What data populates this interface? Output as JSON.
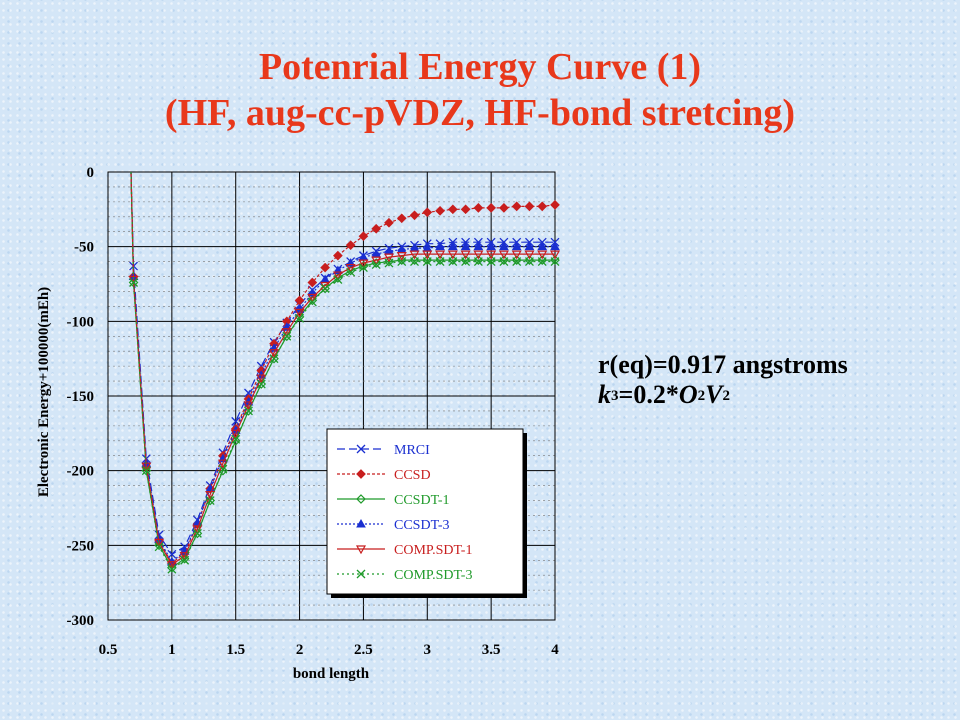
{
  "title_line1": "Potenrial Energy Curve (1)",
  "title_line2": "(HF, aug-cc-pVDZ, HF-bond stretcing)",
  "notes": {
    "req": "r(eq)=0.917 angstroms",
    "k_label": "k",
    "k_sup": "3",
    "k_eq": "=0.2*",
    "o_label": "O",
    "o_sup": "2",
    "v_label": "V",
    "v_sup": "2"
  },
  "colors": {
    "title": "#e8381b",
    "mrci": "#1a2fd0",
    "ccsd": "#c81e1e",
    "ccsdt1": "#1f9a2a",
    "ccsdt3": "#1a2fd0",
    "compsdt1": "#c81e1e",
    "compsdt3": "#1f9a2a"
  },
  "chart_data": {
    "type": "line",
    "title": "",
    "xlabel": "bond length",
    "ylabel": "Electronic Energy+100000(mEh)",
    "xlim": [
      0.5,
      4
    ],
    "ylim": [
      -300,
      0
    ],
    "xticks": [
      0.5,
      1,
      1.5,
      2,
      2.5,
      3,
      3.5,
      4
    ],
    "xtick_labels": [
      "0.5",
      "1",
      "1.5",
      "2",
      "2.5",
      "3",
      "3.5",
      "4"
    ],
    "yticks": [
      0,
      -50,
      -100,
      -150,
      -200,
      -250,
      -300
    ],
    "ytick_labels": [
      "0",
      "-50",
      "-100",
      "-150",
      "-200",
      "-250",
      "-300"
    ],
    "grid": true,
    "legend_position": "bottom-right",
    "x": [
      0.7,
      0.8,
      0.9,
      1.0,
      1.1,
      1.2,
      1.3,
      1.4,
      1.5,
      1.6,
      1.7,
      1.8,
      1.9,
      2.0,
      2.1,
      2.2,
      2.3,
      2.4,
      2.5,
      2.6,
      2.7,
      2.8,
      2.9,
      3.0,
      3.1,
      3.2,
      3.3,
      3.4,
      3.5,
      3.6,
      3.7,
      3.8,
      3.9,
      4.0
    ],
    "series": [
      {
        "name": "MRCI",
        "marker": "x",
        "dash": "8,4",
        "values": [
          -63,
          -192,
          -243,
          -256,
          -251,
          -233,
          -210,
          -188,
          -167,
          -148,
          -130,
          -114,
          -101,
          -89,
          -79,
          -71,
          -65,
          -60,
          -56,
          -53,
          -51,
          -50,
          -49,
          -48,
          -48,
          -47,
          -47,
          -47,
          -47,
          -47,
          -47,
          -47,
          -47,
          -47
        ]
      },
      {
        "name": "CCSD",
        "marker": "diamond-filled",
        "dash": "3,2",
        "values": [
          -70,
          -198,
          -247,
          -262,
          -255,
          -236,
          -212,
          -190,
          -172,
          -152,
          -133,
          -115,
          -100,
          -86,
          -74,
          -64,
          -56,
          -49,
          -43,
          -38,
          -34,
          -31,
          -29,
          -27,
          -26,
          -25,
          -25,
          -24,
          -24,
          -24,
          -23,
          -23,
          -23,
          -22
        ]
      },
      {
        "name": "CCSDT-1",
        "marker": "diamond-open",
        "dash": "",
        "values": [
          -74,
          -200,
          -250,
          -265,
          -259,
          -242,
          -220,
          -200,
          -180,
          -160,
          -142,
          -125,
          -110,
          -97,
          -86,
          -78,
          -71,
          -66,
          -63,
          -61,
          -60,
          -59,
          -59,
          -59,
          -59,
          -59,
          -59,
          -59,
          -59,
          -59,
          -59,
          -59,
          -59,
          -59
        ]
      },
      {
        "name": "CCSDT-3",
        "marker": "triangle-filled",
        "dash": "2,2",
        "values": [
          -70,
          -195,
          -246,
          -261,
          -254,
          -235,
          -212,
          -192,
          -173,
          -154,
          -136,
          -118,
          -104,
          -92,
          -81,
          -72,
          -66,
          -61,
          -57,
          -55,
          -53,
          -52,
          -51,
          -51,
          -50,
          -50,
          -50,
          -50,
          -50,
          -50,
          -50,
          -50,
          -50,
          -50
        ]
      },
      {
        "name": "COMP.SDT-1",
        "marker": "triangle-down-open",
        "dash": "",
        "values": [
          -72,
          -197,
          -248,
          -263,
          -257,
          -239,
          -216,
          -195,
          -175,
          -156,
          -138,
          -121,
          -107,
          -94,
          -84,
          -76,
          -69,
          -64,
          -61,
          -59,
          -57,
          -56,
          -55,
          -55,
          -55,
          -55,
          -55,
          -55,
          -55,
          -55,
          -55,
          -55,
          -55,
          -55
        ]
      },
      {
        "name": "COMP.SDT-3",
        "marker": "x",
        "dash": "2,3",
        "values": [
          -74,
          -200,
          -251,
          -266,
          -260,
          -242,
          -220,
          -199,
          -179,
          -160,
          -142,
          -125,
          -110,
          -98,
          -87,
          -78,
          -72,
          -67,
          -64,
          -62,
          -61,
          -60,
          -60,
          -60,
          -60,
          -60,
          -60,
          -60,
          -60,
          -60,
          -60,
          -60,
          -60,
          -60
        ]
      }
    ]
  }
}
